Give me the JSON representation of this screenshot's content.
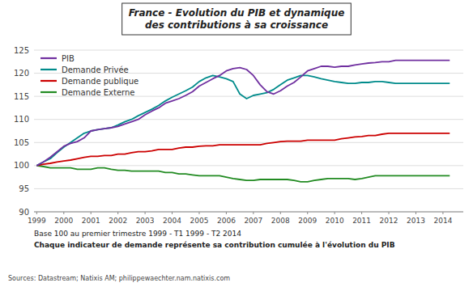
{
  "chart_data": {
    "type": "line",
    "title": "France - Evolution du PIB et dynamique\ndes contributions à sa croissance",
    "subtitle": "Base 100 au premier trimestre 1999 - T1 1999 - T2 2014",
    "annotations": [
      "Chaque indicateur de demande représente sa contribution cumulée à l'évolution du PIB"
    ],
    "source": "Sources: Datastream; Natixis AM; philippewaechter.nam.natixis.com",
    "x": [
      1999,
      1999.25,
      1999.5,
      1999.75,
      2000,
      2000.25,
      2000.5,
      2000.75,
      2001,
      2001.25,
      2001.5,
      2001.75,
      2002,
      2002.25,
      2002.5,
      2002.75,
      2003,
      2003.25,
      2003.5,
      2003.75,
      2004,
      2004.25,
      2004.5,
      2004.75,
      2005,
      2005.25,
      2005.5,
      2005.75,
      2006,
      2006.25,
      2006.5,
      2006.75,
      2007,
      2007.25,
      2007.5,
      2007.75,
      2008,
      2008.25,
      2008.5,
      2008.75,
      2009,
      2009.25,
      2009.5,
      2009.75,
      2010,
      2010.25,
      2010.5,
      2010.75,
      2011,
      2011.25,
      2011.5,
      2011.75,
      2012,
      2012.25,
      2012.5,
      2012.75,
      2013,
      2013.25,
      2013.5,
      2013.75,
      2014,
      2014.25
    ],
    "xlim": [
      1998.9,
      2014.75
    ],
    "xticks": [
      1999,
      2000,
      2001,
      2002,
      2003,
      2004,
      2005,
      2006,
      2007,
      2008,
      2009,
      2010,
      2011,
      2012,
      2013,
      2014
    ],
    "ylim": [
      90,
      125
    ],
    "yticks": [
      90,
      95,
      100,
      105,
      110,
      115,
      120,
      125
    ],
    "grid": true,
    "legend": "upper left",
    "series": [
      {
        "name": "PIB",
        "color": "#7030A0",
        "values": [
          100.0,
          100.8,
          101.8,
          103.0,
          104.2,
          104.8,
          105.2,
          106.0,
          107.5,
          107.8,
          108.0,
          108.2,
          108.5,
          109.0,
          109.5,
          110.0,
          111.0,
          111.8,
          112.5,
          113.5,
          114.0,
          114.5,
          115.2,
          116.0,
          117.2,
          118.0,
          118.8,
          119.5,
          120.5,
          121.0,
          121.2,
          120.8,
          119.5,
          117.5,
          116.0,
          115.5,
          116.2,
          117.2,
          118.0,
          119.2,
          120.5,
          121.0,
          121.5,
          121.5,
          121.3,
          121.5,
          121.5,
          121.8,
          122.0,
          122.2,
          122.3,
          122.5,
          122.5,
          122.8,
          122.8,
          122.8,
          122.8,
          122.8,
          122.8,
          122.8,
          122.8,
          122.8
        ]
      },
      {
        "name": "Demande Privée",
        "color": "#008B8B",
        "values": [
          100.0,
          100.8,
          101.5,
          102.8,
          104.0,
          105.0,
          106.0,
          107.0,
          107.5,
          107.8,
          108.0,
          108.2,
          108.8,
          109.5,
          110.0,
          110.8,
          111.5,
          112.2,
          113.0,
          114.0,
          114.8,
          115.5,
          116.2,
          117.0,
          118.2,
          119.0,
          119.5,
          119.2,
          118.8,
          118.2,
          115.5,
          114.5,
          115.2,
          115.5,
          115.8,
          116.5,
          117.5,
          118.5,
          119.0,
          119.5,
          119.5,
          119.2,
          118.8,
          118.5,
          118.2,
          118.0,
          117.8,
          117.8,
          118.0,
          118.0,
          118.2,
          118.2,
          118.0,
          117.8,
          117.8,
          117.8,
          117.8,
          117.8,
          117.8,
          117.8,
          117.8,
          117.8
        ]
      },
      {
        "name": "Demande publique",
        "color": "#CC0000",
        "values": [
          100.0,
          100.3,
          100.5,
          100.8,
          101.0,
          101.2,
          101.5,
          101.8,
          102.0,
          102.0,
          102.2,
          102.2,
          102.5,
          102.5,
          102.8,
          103.0,
          103.0,
          103.2,
          103.5,
          103.5,
          103.5,
          103.8,
          104.0,
          104.0,
          104.2,
          104.3,
          104.3,
          104.5,
          104.5,
          104.5,
          104.5,
          104.5,
          104.5,
          104.5,
          104.8,
          105.0,
          105.2,
          105.3,
          105.3,
          105.3,
          105.5,
          105.5,
          105.5,
          105.5,
          105.5,
          105.8,
          106.0,
          106.2,
          106.3,
          106.5,
          106.5,
          106.8,
          107.0,
          107.0,
          107.0,
          107.0,
          107.0,
          107.0,
          107.0,
          107.0,
          107.0,
          107.0
        ]
      },
      {
        "name": "Demande Externe",
        "color": "#228B22",
        "values": [
          100.0,
          99.8,
          99.5,
          99.5,
          99.5,
          99.5,
          99.2,
          99.2,
          99.2,
          99.5,
          99.5,
          99.2,
          99.0,
          99.0,
          98.8,
          98.8,
          98.8,
          98.8,
          98.8,
          98.5,
          98.5,
          98.2,
          98.2,
          98.0,
          97.8,
          97.8,
          97.8,
          97.8,
          97.5,
          97.2,
          97.0,
          96.8,
          96.8,
          97.0,
          97.0,
          97.0,
          97.0,
          97.0,
          96.8,
          96.5,
          96.5,
          96.8,
          97.0,
          97.2,
          97.2,
          97.2,
          97.2,
          97.0,
          97.2,
          97.5,
          97.8,
          97.8,
          97.8,
          97.8,
          97.8,
          97.8,
          97.8,
          97.8,
          97.8,
          97.8,
          97.8,
          97.8
        ]
      }
    ]
  }
}
